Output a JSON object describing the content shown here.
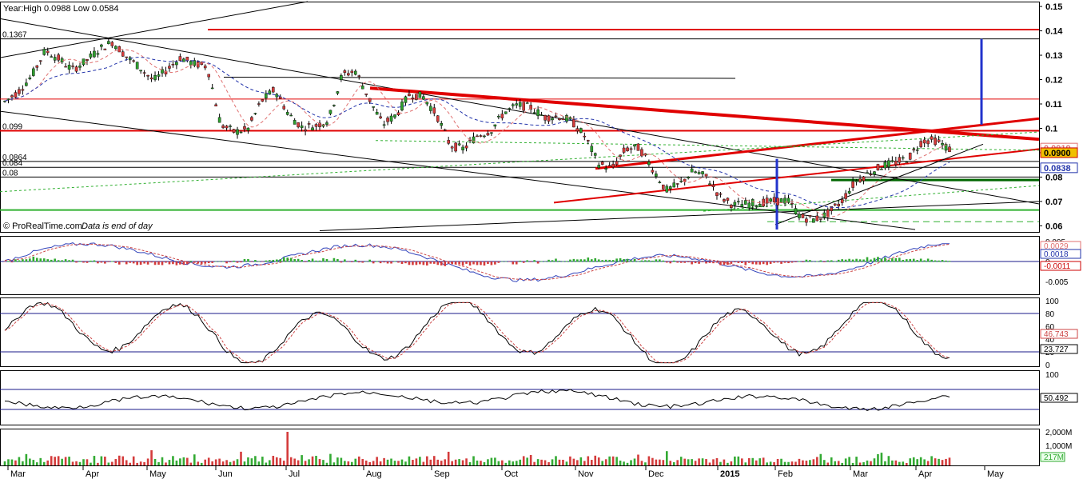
{
  "chart_data": {
    "type": "candlestick",
    "header_text": "Year:High 0.0988 Low 0.0584",
    "footer_credit": "© ProRealTime.com",
    "footer_note": "Data is end of day",
    "x_axis": {
      "labels": [
        "Mar",
        "Apr",
        "May",
        "Jun",
        "Jul",
        "Aug",
        "Sep",
        "Oct",
        "Nov",
        "Dec",
        "2015",
        "Feb",
        "Mar",
        "Apr",
        "May"
      ]
    },
    "price_panel": {
      "ylim": [
        0.0575,
        0.152
      ],
      "ticks": [
        "0.15",
        "0.14",
        "0.13",
        "0.12",
        "0.11",
        "0.1",
        "0.09",
        "0.08",
        "0.07",
        "0.06"
      ],
      "left_labels": [
        {
          "text": "0.1367",
          "value": 0.1367
        },
        {
          "text": "0.099",
          "value": 0.099
        },
        {
          "text": "0.0864",
          "value": 0.0864
        },
        {
          "text": "0.084",
          "value": 0.084
        },
        {
          "text": "0.08",
          "value": 0.08
        }
      ],
      "right_boxes": [
        {
          "text": "0.0919",
          "value": 0.0919,
          "border": "#e07070",
          "fill": "#ffffff",
          "color": "#e07070"
        },
        {
          "text": "0.0900",
          "value": 0.09,
          "border": "#cc0000",
          "fill": "#f0c000",
          "color": "#000000"
        },
        {
          "text": "0.0838",
          "value": 0.0838,
          "border": "#2233aa",
          "fill": "#ffffff",
          "color": "#2233aa"
        }
      ],
      "up_color": "#2e9e2e",
      "down_color": "#d43b3b",
      "candle_anchors": [
        [
          0.112,
          0.11
        ],
        [
          0.118,
          0.112
        ],
        [
          0.127,
          0.116
        ],
        [
          0.136,
          0.128
        ],
        [
          0.13,
          0.127
        ],
        [
          0.124,
          0.124
        ],
        [
          0.128,
          0.127
        ],
        [
          0.134,
          0.131
        ],
        [
          0.136,
          0.135
        ],
        [
          0.132,
          0.127
        ],
        [
          0.126,
          0.124
        ],
        [
          0.121,
          0.118
        ],
        [
          0.125,
          0.123
        ],
        [
          0.128,
          0.13
        ],
        [
          0.128,
          0.125
        ],
        [
          0.131,
          0.12
        ],
        [
          0.105,
          0.098
        ],
        [
          0.096,
          0.101
        ],
        [
          0.1,
          0.099
        ],
        [
          0.11,
          0.112
        ],
        [
          0.114,
          0.118
        ],
        [
          0.108,
          0.104
        ],
        [
          0.102,
          0.099
        ],
        [
          0.104,
          0.098
        ],
        [
          0.103,
          0.104
        ],
        [
          0.107,
          0.137
        ],
        [
          0.126,
          0.121
        ],
        [
          0.114,
          0.11
        ],
        [
          0.103,
          0.1
        ],
        [
          0.101,
          0.11
        ],
        [
          0.108,
          0.12
        ],
        [
          0.114,
          0.112
        ],
        [
          0.108,
          0.103
        ],
        [
          0.098,
          0.088
        ],
        [
          0.087,
          0.096
        ],
        [
          0.098,
          0.096
        ],
        [
          0.097,
          0.101
        ],
        [
          0.105,
          0.108
        ],
        [
          0.108,
          0.111
        ],
        [
          0.109,
          0.108
        ],
        [
          0.106,
          0.103
        ],
        [
          0.104,
          0.106
        ],
        [
          0.105,
          0.101
        ],
        [
          0.098,
          0.095
        ],
        [
          0.092,
          0.079
        ],
        [
          0.081,
          0.086
        ],
        [
          0.089,
          0.094
        ],
        [
          0.093,
          0.091
        ],
        [
          0.087,
          0.08
        ],
        [
          0.076,
          0.073
        ],
        [
          0.075,
          0.079
        ],
        [
          0.081,
          0.084
        ],
        [
          0.082,
          0.078
        ],
        [
          0.074,
          0.07
        ],
        [
          0.07,
          0.067
        ],
        [
          0.068,
          0.07
        ],
        [
          0.071,
          0.068
        ],
        [
          0.069,
          0.071
        ],
        [
          0.072,
          0.069
        ],
        [
          0.066,
          0.061
        ],
        [
          0.062,
          0.063
        ],
        [
          0.064,
          0.066
        ],
        [
          0.068,
          0.072
        ],
        [
          0.076,
          0.08
        ],
        [
          0.082,
          0.081
        ],
        [
          0.083,
          0.086
        ],
        [
          0.087,
          0.085
        ],
        [
          0.086,
          0.09
        ],
        [
          0.093,
          0.097
        ],
        [
          0.096,
          0.094
        ],
        [
          0.093,
          0.09
        ]
      ],
      "lines": [
        {
          "kind": "horizontal",
          "value": 0.1405,
          "from": 0.2,
          "to": 1.0,
          "color": "#e00000",
          "width": 2
        },
        {
          "kind": "horizontal",
          "value": 0.1367,
          "from": 0.0,
          "to": 1.0,
          "color": "#000000",
          "width": 1
        },
        {
          "kind": "horizontal",
          "value": 0.112,
          "from": 0.0,
          "to": 1.0,
          "color": "#e00000",
          "width": 1
        },
        {
          "kind": "horizontal",
          "value": 0.099,
          "from": 0.0,
          "to": 1.0,
          "color": "#e00000",
          "width": 2
        },
        {
          "kind": "horizontal",
          "value": 0.0864,
          "from": 0.0,
          "to": 1.0,
          "color": "#000000",
          "width": 1
        },
        {
          "kind": "horizontal",
          "value": 0.084,
          "from": 0.0,
          "to": 1.0,
          "color": "#000000",
          "width": 1
        },
        {
          "kind": "horizontal",
          "value": 0.08,
          "from": 0.0,
          "to": 1.0,
          "color": "#000000",
          "width": 1
        },
        {
          "kind": "horizontal",
          "value": 0.0665,
          "from": 0.0,
          "to": 1.0,
          "color": "#30b030",
          "width": 2
        }
      ]
    },
    "macd_panel": {
      "ticks": [
        "0.005",
        "0",
        "-0.005"
      ],
      "right_values": [
        "0.0029",
        "0.0018",
        "-0.0011"
      ]
    },
    "stoch_panel": {
      "ticks": [
        "100",
        "80",
        "60",
        "40",
        "20",
        "0"
      ],
      "right_values": [
        "46.743",
        "23.727"
      ]
    },
    "rsi_panel": {
      "ticks": [
        "100",
        "50"
      ],
      "right_values": [
        "50.492"
      ]
    },
    "volume_panel": {
      "ticks": [
        "2,000M",
        "1,000M"
      ],
      "right_values": [
        "217M"
      ]
    }
  }
}
